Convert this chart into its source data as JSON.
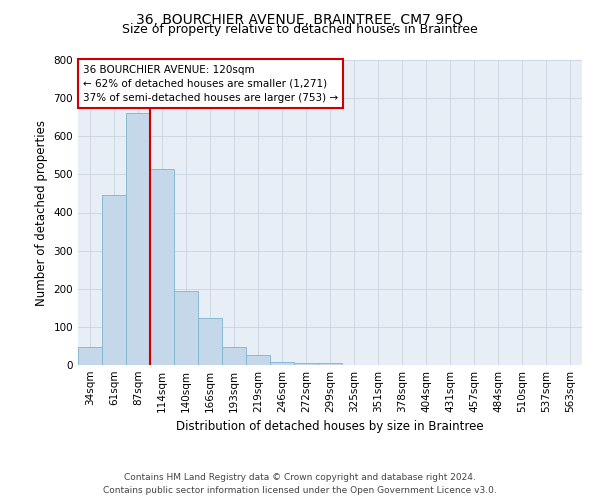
{
  "title": "36, BOURCHIER AVENUE, BRAINTREE, CM7 9FQ",
  "subtitle": "Size of property relative to detached houses in Braintree",
  "xlabel": "Distribution of detached houses by size in Braintree",
  "ylabel": "Number of detached properties",
  "categories": [
    "34sqm",
    "61sqm",
    "87sqm",
    "114sqm",
    "140sqm",
    "166sqm",
    "193sqm",
    "219sqm",
    "246sqm",
    "272sqm",
    "299sqm",
    "325sqm",
    "351sqm",
    "378sqm",
    "404sqm",
    "431sqm",
    "457sqm",
    "484sqm",
    "510sqm",
    "537sqm",
    "563sqm"
  ],
  "bar_values": [
    47,
    445,
    660,
    514,
    194,
    124,
    47,
    25,
    8,
    5,
    5,
    0,
    0,
    0,
    0,
    0,
    0,
    0,
    0,
    0,
    0
  ],
  "bar_color": "#c5d8ea",
  "bar_edge_color": "#7ab4d0",
  "bar_width": 1.0,
  "vline_position": 2.5,
  "vline_color": "#cc0000",
  "annotation_box_color": "#cc0000",
  "annotation_text_line1": "36 BOURCHIER AVENUE: 120sqm",
  "annotation_text_line2": "← 62% of detached houses are smaller (1,271)",
  "annotation_text_line3": "37% of semi-detached houses are larger (753) →",
  "ylim": [
    0,
    800
  ],
  "yticks": [
    0,
    100,
    200,
    300,
    400,
    500,
    600,
    700,
    800
  ],
  "grid_color": "#c8d4e0",
  "background_color": "#e8eef5",
  "footer_line1": "Contains HM Land Registry data © Crown copyright and database right 2024.",
  "footer_line2": "Contains public sector information licensed under the Open Government Licence v3.0.",
  "title_fontsize": 10,
  "subtitle_fontsize": 9,
  "xlabel_fontsize": 8.5,
  "ylabel_fontsize": 8.5,
  "tick_fontsize": 7.5,
  "footer_fontsize": 6.5,
  "annotation_fontsize": 7.5
}
